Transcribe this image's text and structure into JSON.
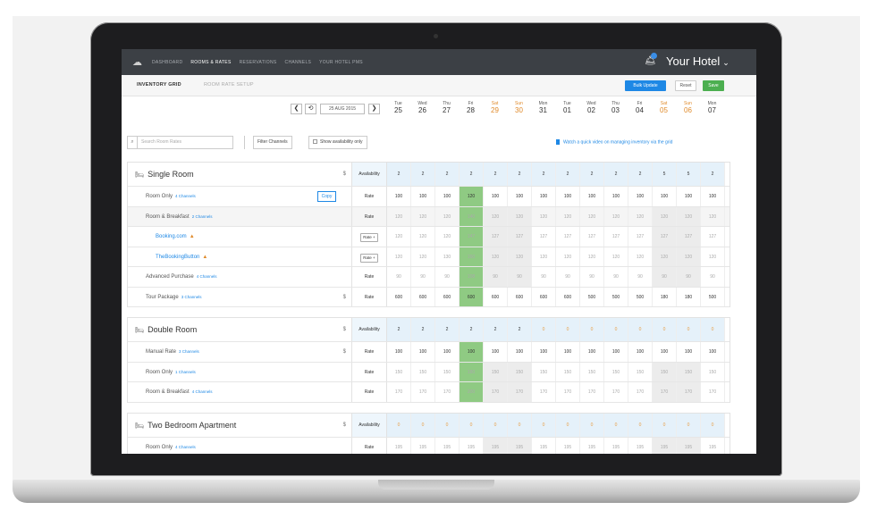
{
  "app": {
    "nav": [
      "DASHBOARD",
      "ROOMS & RATES",
      "RESERVATIONS",
      "CHANNELS",
      "YOUR HOTEL PMS"
    ],
    "active_nav_index": 1,
    "hotel_name": "Your Hotel",
    "hotel_chevron": "⌄",
    "notification_icon": "bell-icon",
    "logo_icon": "cloud-logo-icon"
  },
  "tabs": [
    "INVENTORY GRID",
    "ROOM RATE SETUP"
  ],
  "active_tab_index": 0,
  "buttons": {
    "bulk_update": "Bulk Update",
    "reset": "Reset",
    "save": "Save"
  },
  "date_nav": {
    "prev": "❮",
    "refresh": "⟲",
    "current_date": "25 AUG 2015",
    "next": "❯"
  },
  "days": [
    {
      "name": "Tue",
      "date": "25",
      "weekend": false
    },
    {
      "name": "Wed",
      "date": "26",
      "weekend": false
    },
    {
      "name": "Thu",
      "date": "27",
      "weekend": false
    },
    {
      "name": "Fri",
      "date": "28",
      "weekend": false
    },
    {
      "name": "Sat",
      "date": "29",
      "weekend": true
    },
    {
      "name": "Sun",
      "date": "30",
      "weekend": true
    },
    {
      "name": "Mon",
      "date": "31",
      "weekend": false
    },
    {
      "name": "Tue",
      "date": "01",
      "weekend": false
    },
    {
      "name": "Wed",
      "date": "02",
      "weekend": false
    },
    {
      "name": "Thu",
      "date": "03",
      "weekend": false
    },
    {
      "name": "Fri",
      "date": "04",
      "weekend": false
    },
    {
      "name": "Sat",
      "date": "05",
      "weekend": true
    },
    {
      "name": "Sun",
      "date": "06",
      "weekend": true
    },
    {
      "name": "Mon",
      "date": "07",
      "weekend": false
    }
  ],
  "toolbar": {
    "search_placeholder": "Search Room Rates",
    "filter_channels": "Filter Channels",
    "show_availability": "Show availability only",
    "video_link": "Watch a quick video on managing inventory via the grid"
  },
  "sections": [
    {
      "title": "Single Room",
      "head_type": "Availability",
      "availability": [
        "2",
        "2",
        "2",
        "2",
        "2",
        "2",
        "2",
        "2",
        "2",
        "2",
        "2",
        "5",
        "5",
        "2"
      ],
      "rows": [
        {
          "name": "Room Only",
          "channels": "4 Channels",
          "type": "Rate",
          "copy": "Copy",
          "values": [
            "100",
            "100",
            "100",
            "120",
            "100",
            "100",
            "100",
            "100",
            "100",
            "100",
            "100",
            "100",
            "100",
            "100"
          ]
        },
        {
          "name": "Room & Breakfast",
          "channels": "2 Channels",
          "type": "Rate",
          "grey": true,
          "dim": true,
          "values": [
            "120",
            "120",
            "120",
            "140",
            "120",
            "120",
            "120",
            "120",
            "120",
            "120",
            "120",
            "120",
            "120",
            "120"
          ]
        },
        {
          "name": "Booking.com",
          "sub": true,
          "warn": true,
          "type": "Rate +",
          "dim": true,
          "values": [
            "120",
            "120",
            "120",
            "147",
            "127",
            "127",
            "127",
            "127",
            "127",
            "127",
            "127",
            "127",
            "127",
            "127"
          ]
        },
        {
          "name": "TheBookingButton",
          "sub": true,
          "warn": true,
          "type": "Rate +",
          "dim": true,
          "values": [
            "120",
            "120",
            "130",
            "160",
            "120",
            "120",
            "120",
            "120",
            "120",
            "120",
            "120",
            "120",
            "120",
            "120"
          ]
        },
        {
          "name": "Advanced Purchase",
          "channels": "4 Channels",
          "type": "Rate",
          "dim": true,
          "values": [
            "90",
            "90",
            "90",
            "108",
            "90",
            "90",
            "90",
            "90",
            "90",
            "90",
            "90",
            "90",
            "90",
            "90"
          ]
        },
        {
          "name": "Tour Package",
          "channels": "3 Channels",
          "type": "Rate",
          "dollar": true,
          "values": [
            "600",
            "600",
            "600",
            "600",
            "600",
            "600",
            "600",
            "600",
            "500",
            "500",
            "500",
            "180",
            "180",
            "500"
          ]
        }
      ]
    },
    {
      "title": "Double Room",
      "head_type": "Availability",
      "availability": [
        "2",
        "2",
        "2",
        "2",
        "2",
        "2",
        "0",
        "0",
        "0",
        "0",
        "0",
        "0",
        "0",
        "0"
      ],
      "rows": [
        {
          "name": "Manual Rate",
          "channels": "3 Channels",
          "type": "Rate",
          "dollar": true,
          "values": [
            "100",
            "100",
            "100",
            "100",
            "100",
            "100",
            "100",
            "100",
            "100",
            "100",
            "100",
            "100",
            "100",
            "100"
          ]
        },
        {
          "name": "Room Only",
          "channels": "1 Channels",
          "type": "Rate",
          "dim": true,
          "values": [
            "150",
            "150",
            "150",
            "180",
            "150",
            "150",
            "150",
            "150",
            "150",
            "150",
            "150",
            "150",
            "150",
            "150"
          ]
        },
        {
          "name": "Room & Breakfast",
          "channels": "4 Channels",
          "type": "Rate",
          "dim": true,
          "values": [
            "170",
            "170",
            "170",
            "200",
            "170",
            "170",
            "170",
            "170",
            "170",
            "170",
            "170",
            "170",
            "170",
            "170"
          ]
        }
      ]
    },
    {
      "title": "Two Bedroom Apartment",
      "head_type": "Availability",
      "availability": [
        "0",
        "0",
        "0",
        "0",
        "0",
        "0",
        "0",
        "0",
        "0",
        "0",
        "0",
        "0",
        "0",
        "0"
      ],
      "rows": [
        {
          "name": "Room Only",
          "channels": "4 Channels",
          "type": "Rate",
          "dim": true,
          "values": [
            "195",
            "195",
            "195",
            "195",
            "195",
            "195",
            "195",
            "195",
            "195",
            "195",
            "195",
            "195",
            "195",
            "195"
          ]
        }
      ]
    }
  ],
  "colors": {
    "accent": "#1e88e5",
    "save": "#4caf50",
    "weekend": "#e08b2c",
    "highlight_col": "#8fca83",
    "nav_bg": "#3c4045"
  }
}
